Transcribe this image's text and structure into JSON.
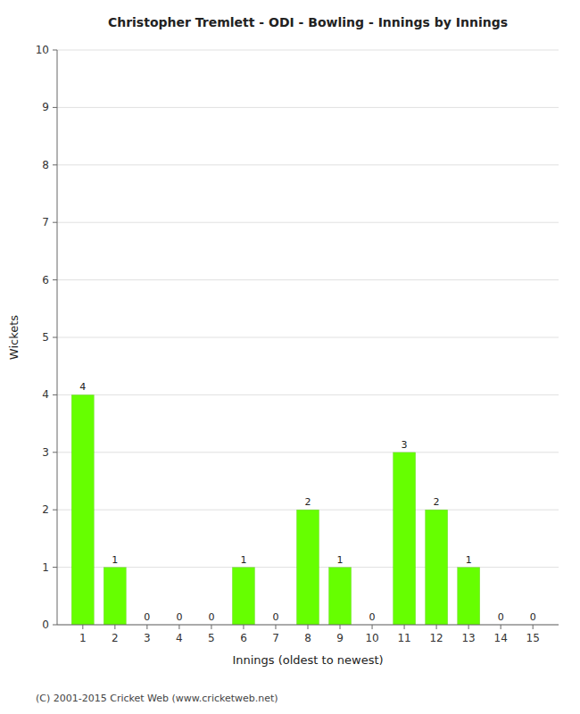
{
  "chart_data": {
    "type": "bar",
    "title": "Christopher Tremlett - ODI - Bowling - Innings by Innings",
    "x_label": "Innings (oldest to newest)",
    "y_label": "Wickets",
    "x": [
      1,
      2,
      3,
      4,
      5,
      6,
      7,
      8,
      9,
      10,
      11,
      12,
      13,
      14,
      15
    ],
    "values": [
      4,
      1,
      0,
      0,
      0,
      1,
      0,
      2,
      1,
      0,
      3,
      2,
      1,
      0,
      0
    ],
    "color": "#66ff00",
    "xlim": [
      0.2,
      15.8
    ],
    "xticks": [
      1,
      2,
      3,
      4,
      5,
      6,
      7,
      8,
      9,
      10,
      11,
      12,
      13,
      14,
      15
    ],
    "ylim": [
      0,
      10
    ],
    "yticks": [
      0,
      1,
      2,
      3,
      4,
      5,
      6,
      7,
      8,
      9,
      10
    ],
    "grid": true,
    "data_labels": true,
    "annotations": [
      "(C) 2001-2015 Cricket Web (www.cricketweb.net)"
    ]
  }
}
